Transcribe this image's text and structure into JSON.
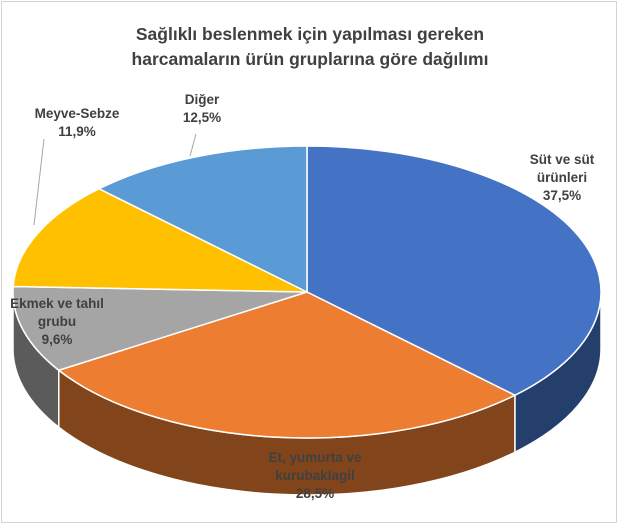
{
  "chart_data": {
    "type": "pie",
    "title_lines": [
      "Sağlıklı beslenmek için yapılması gereken",
      "harcamaların ürün gruplarına göre dağılımı"
    ],
    "slices": [
      {
        "label_lines": [
          "Süt ve süt",
          "ürünleri"
        ],
        "value": 37.5,
        "value_label": "37,5%",
        "color": "#4472c4"
      },
      {
        "label_lines": [
          "Et, yumurta ve",
          "kurubaklagil"
        ],
        "value": 28.5,
        "value_label": "28,5%",
        "color": "#ed7d31"
      },
      {
        "label_lines": [
          "Ekmek ve tahıl",
          "grubu"
        ],
        "value": 9.6,
        "value_label": "9,6%",
        "color": "#a5a5a5"
      },
      {
        "label_lines": [
          "Meyve-Sebze"
        ],
        "value": 11.9,
        "value_label": "11,9%",
        "color": "#ffc000"
      },
      {
        "label_lines": [
          "Diğer"
        ],
        "value": 12.5,
        "value_label": "12,5%",
        "color": "#5b9bd5"
      }
    ],
    "legend": "none",
    "style": "3d"
  }
}
